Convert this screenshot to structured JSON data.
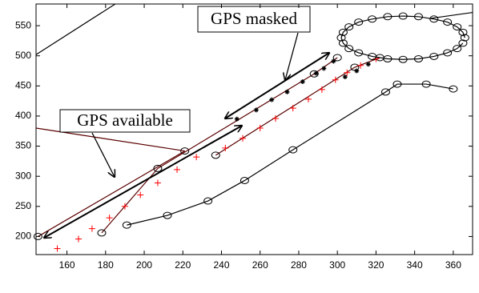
{
  "chart_data": {
    "type": "line",
    "xlim": [
      144,
      370
    ],
    "ylim": [
      170,
      586
    ],
    "xticks": [
      160,
      180,
      200,
      220,
      240,
      260,
      280,
      300,
      320,
      340,
      360
    ],
    "yticks": [
      200,
      250,
      300,
      350,
      400,
      450,
      500,
      550
    ],
    "grid": false,
    "annotations": [
      {
        "text": "GPS masked"
      },
      {
        "text": "GPS available"
      }
    ],
    "series": [
      {
        "color": "#5a0000",
        "marker": "o",
        "line": true,
        "x": [
          145,
          221
        ],
        "values": [
          200,
          342
        ]
      },
      {
        "color": "#5a0000",
        "marker": "none",
        "line": true,
        "x": [
          221,
          144
        ],
        "values": [
          342,
          380
        ]
      },
      {
        "color": "#5a0000",
        "marker": "o",
        "line": true,
        "x": [
          178,
          207,
          288,
          300
        ],
        "values": [
          206,
          313,
          470,
          497
        ]
      },
      {
        "color": "#5a0000",
        "marker": "o",
        "line": true,
        "x": [
          237,
          309,
          322
        ],
        "values": [
          335,
          481,
          497
        ]
      },
      {
        "color": "#000000",
        "marker": "o",
        "line": true,
        "x": [
          191,
          212,
          233,
          252,
          277,
          325,
          331,
          346,
          360
        ],
        "values": [
          219,
          235,
          259,
          293,
          344,
          440,
          453,
          453,
          445
        ]
      },
      {
        "color": "#ff0000",
        "marker": "+",
        "line": false,
        "x": [
          155,
          166,
          173,
          182,
          190,
          198,
          207,
          217,
          227,
          242,
          251,
          260,
          268,
          277,
          285,
          292,
          299,
          305,
          312,
          320
        ],
        "values": [
          180,
          196,
          213,
          231,
          250,
          269,
          289,
          311,
          332,
          347,
          363,
          380,
          396,
          413,
          428,
          444,
          460,
          472,
          484,
          495
        ]
      },
      {
        "color": "#000000",
        "marker": "*",
        "line": false,
        "x": [
          248,
          258,
          266,
          274,
          282,
          289,
          293,
          298,
          304,
          310,
          316
        ],
        "values": [
          395,
          410,
          427,
          440,
          457,
          471,
          479,
          491,
          465,
          475,
          486
        ]
      },
      {
        "color": "#000000",
        "marker": "o",
        "line": true,
        "x": [
          366,
          365,
          362,
          357,
          350,
          342,
          334,
          326,
          318,
          311,
          306,
          303,
          302,
          303,
          306,
          311,
          318,
          326,
          334,
          342,
          350,
          357,
          362,
          365
        ],
        "values": [
          530,
          539,
          548,
          556,
          561,
          565,
          566,
          565,
          561,
          556,
          548,
          539,
          530,
          521,
          512,
          505,
          499,
          495,
          494,
          495,
          499,
          505,
          512,
          521
        ]
      },
      {
        "color": "#000000",
        "marker": "none",
        "line": true,
        "x": [
          144,
          185
        ],
        "values": [
          502,
          586
        ]
      },
      {
        "color": "#000000",
        "marker": "none",
        "line": true,
        "x": [
          348,
          370
        ],
        "values": [
          562,
          572
        ]
      }
    ]
  }
}
